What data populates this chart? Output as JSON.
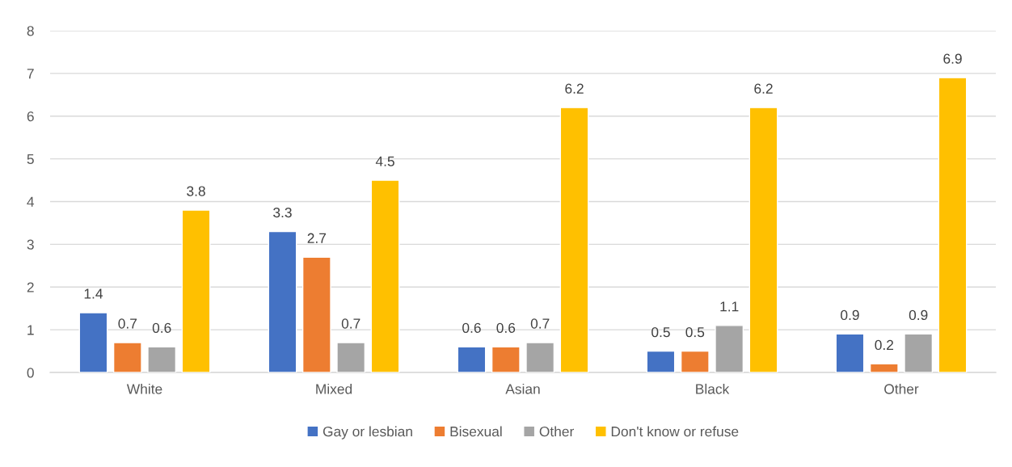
{
  "chart_data": {
    "type": "bar",
    "categories": [
      "White",
      "Mixed",
      "Asian",
      "Black",
      "Other"
    ],
    "series": [
      {
        "name": "Gay or lesbian",
        "color": "#4472c4",
        "values": [
          1.4,
          3.3,
          0.6,
          0.5,
          0.9
        ]
      },
      {
        "name": "Bisexual",
        "color": "#ed7d31",
        "values": [
          0.7,
          2.7,
          0.6,
          0.5,
          0.2
        ]
      },
      {
        "name": "Other",
        "color": "#a5a5a5",
        "values": [
          0.6,
          0.7,
          0.7,
          1.1,
          0.9
        ]
      },
      {
        "name": "Don't know or refuse",
        "color": "#ffc000",
        "values": [
          3.8,
          4.5,
          6.2,
          6.2,
          6.9
        ]
      }
    ],
    "ylim": [
      0,
      8
    ],
    "yticks": [
      0,
      1,
      2,
      3,
      4,
      5,
      6,
      7,
      8
    ],
    "grid": "y",
    "legend": "bottom",
    "data_labels": true
  }
}
